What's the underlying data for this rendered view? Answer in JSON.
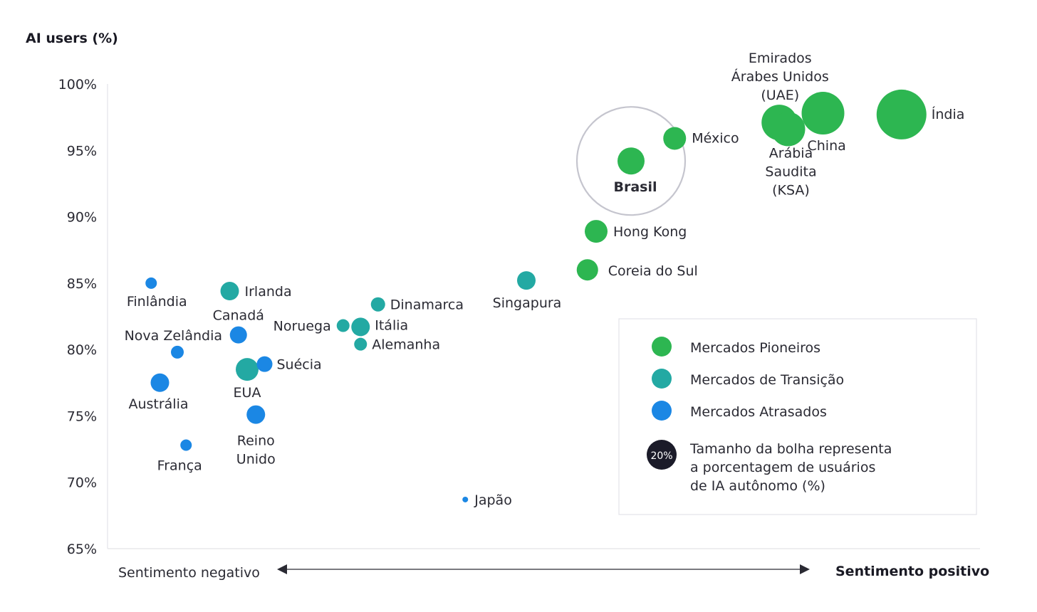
{
  "chart_data": {
    "type": "scatter",
    "ylabel": "AI users (%)",
    "ylim": [
      65,
      100
    ],
    "yticks": [
      100,
      95,
      90,
      85,
      80,
      75,
      70,
      65
    ],
    "ytick_labels": [
      "100%",
      "95%",
      "90%",
      "85%",
      "80%",
      "75%",
      "70%",
      "65%"
    ],
    "x_axis": {
      "left_label": "Sentimento negativo",
      "right_label": "Sentimento positivo"
    },
    "categories_colors": {
      "Mercados Pioneiros": "#2db651",
      "Mercados de Transição": "#23a9a3",
      "Mercados Atrasados": "#1b87e4"
    },
    "points": [
      {
        "label": [
          "Índia"
        ],
        "x": 0.91,
        "y": 97.7,
        "size": 35,
        "group": "Mercados Pioneiros"
      },
      {
        "label": [
          "China"
        ],
        "x": 0.82,
        "y": 97.8,
        "size": 30,
        "group": "Mercados Pioneiros"
      },
      {
        "label": [
          "Emirados",
          "Árabes Unidos",
          "(UAE)"
        ],
        "x": 0.77,
        "y": 97.1,
        "size": 25,
        "group": "Mercados Pioneiros"
      },
      {
        "label": [
          "Arábia",
          "Saudita",
          "(KSA)"
        ],
        "x": 0.78,
        "y": 96.6,
        "size": 24,
        "group": "Mercados Pioneiros"
      },
      {
        "label": [
          "México"
        ],
        "x": 0.65,
        "y": 95.9,
        "size": 16,
        "group": "Mercados Pioneiros"
      },
      {
        "label": [
          "Brasil"
        ],
        "x": 0.6,
        "y": 94.2,
        "size": 19,
        "group": "Mercados Pioneiros",
        "highlight": true
      },
      {
        "label": [
          "Hong Kong"
        ],
        "x": 0.56,
        "y": 88.9,
        "size": 16,
        "group": "Mercados Pioneiros"
      },
      {
        "label": [
          "Coreia do Sul"
        ],
        "x": 0.55,
        "y": 86.0,
        "size": 15,
        "group": "Mercados Pioneiros"
      },
      {
        "label": [
          "Singapura"
        ],
        "x": 0.48,
        "y": 85.2,
        "size": 13,
        "group": "Mercados de Transição"
      },
      {
        "label": [
          "Dinamarca"
        ],
        "x": 0.31,
        "y": 83.4,
        "size": 10,
        "group": "Mercados de Transição"
      },
      {
        "label": [
          "Noruega"
        ],
        "x": 0.27,
        "y": 81.8,
        "size": 9,
        "group": "Mercados de Transição"
      },
      {
        "label": [
          "Itália"
        ],
        "x": 0.29,
        "y": 81.7,
        "size": 13,
        "group": "Mercados de Transição"
      },
      {
        "label": [
          "Alemanha"
        ],
        "x": 0.29,
        "y": 80.4,
        "size": 9,
        "group": "Mercados de Transição"
      },
      {
        "label": [
          "Irlanda"
        ],
        "x": 0.14,
        "y": 84.4,
        "size": 13,
        "group": "Mercados de Transição"
      },
      {
        "label": [
          "EUA"
        ],
        "x": 0.16,
        "y": 78.5,
        "size": 16,
        "group": "Mercados de Transição"
      },
      {
        "label": [
          "Finlândia"
        ],
        "x": 0.05,
        "y": 85.0,
        "size": 8,
        "group": "Mercados Atrasados"
      },
      {
        "label": [
          "Canadá"
        ],
        "x": 0.15,
        "y": 81.1,
        "size": 12,
        "group": "Mercados Atrasados"
      },
      {
        "label": [
          "Nova Zelândia"
        ],
        "x": 0.08,
        "y": 79.8,
        "size": 9,
        "group": "Mercados Atrasados"
      },
      {
        "label": [
          "Suécia"
        ],
        "x": 0.18,
        "y": 78.9,
        "size": 11,
        "group": "Mercados Atrasados"
      },
      {
        "label": [
          "Austrália"
        ],
        "x": 0.06,
        "y": 77.5,
        "size": 13,
        "group": "Mercados Atrasados"
      },
      {
        "label": [
          "Reino",
          "Unido"
        ],
        "x": 0.17,
        "y": 75.1,
        "size": 13,
        "group": "Mercados Atrasados"
      },
      {
        "label": [
          "França"
        ],
        "x": 0.09,
        "y": 72.8,
        "size": 8,
        "group": "Mercados Atrasados"
      },
      {
        "label": [
          "Japão"
        ],
        "x": 0.41,
        "y": 68.7,
        "size": 4,
        "group": "Mercados Atrasados"
      }
    ],
    "legend": {
      "placement": "bottom-right",
      "entries": [
        {
          "name": "Mercados Pioneiros",
          "color": "#2db651"
        },
        {
          "name": "Mercados de Transição",
          "color": "#23a9a3"
        },
        {
          "name": "Mercados Atrasados",
          "color": "#1b87e4"
        }
      ],
      "size_note": {
        "badge": "20%",
        "lines": [
          "Tamanho da bolha representa",
          "a porcentagem de usuários",
          "de IA autônomo  (%)"
        ]
      }
    }
  }
}
